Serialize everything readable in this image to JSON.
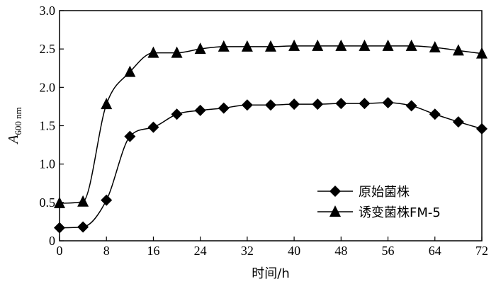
{
  "chart_data": {
    "type": "line",
    "xlabel": "时间/h",
    "ylabel": {
      "main": "A",
      "sub": "600 nm"
    },
    "xlim": [
      0,
      72
    ],
    "ylim": [
      0,
      3.0
    ],
    "xticks": [
      0,
      8,
      16,
      24,
      32,
      40,
      48,
      56,
      64,
      72
    ],
    "xtick_labels": [
      "0",
      "8",
      "16",
      "24",
      "32",
      "40",
      "48",
      "56",
      "64",
      "72"
    ],
    "yticks": [
      0,
      0.5,
      1.0,
      1.5,
      2.0,
      2.5,
      3.0
    ],
    "ytick_labels": [
      "0",
      "0.5",
      "1.0",
      "1.5",
      "2.0",
      "2.5",
      "3.0"
    ],
    "grid": false,
    "legend_position": "bottom-right",
    "x": [
      0,
      4,
      8,
      12,
      16,
      20,
      24,
      28,
      32,
      36,
      40,
      44,
      48,
      52,
      56,
      60,
      64,
      68,
      72
    ],
    "series": [
      {
        "name": "原始菌株",
        "marker": "diamond",
        "color": "#000000",
        "values": [
          0.17,
          0.18,
          0.53,
          1.36,
          1.48,
          1.65,
          1.7,
          1.73,
          1.77,
          1.77,
          1.78,
          1.78,
          1.79,
          1.79,
          1.8,
          1.76,
          1.65,
          1.55,
          1.46
        ]
      },
      {
        "name": "诱变菌株FM-5",
        "marker": "triangle",
        "color": "#000000",
        "values": [
          0.49,
          0.51,
          1.78,
          2.2,
          2.45,
          2.45,
          2.5,
          2.53,
          2.53,
          2.53,
          2.54,
          2.54,
          2.54,
          2.54,
          2.54,
          2.54,
          2.52,
          2.48,
          2.44
        ]
      }
    ]
  }
}
